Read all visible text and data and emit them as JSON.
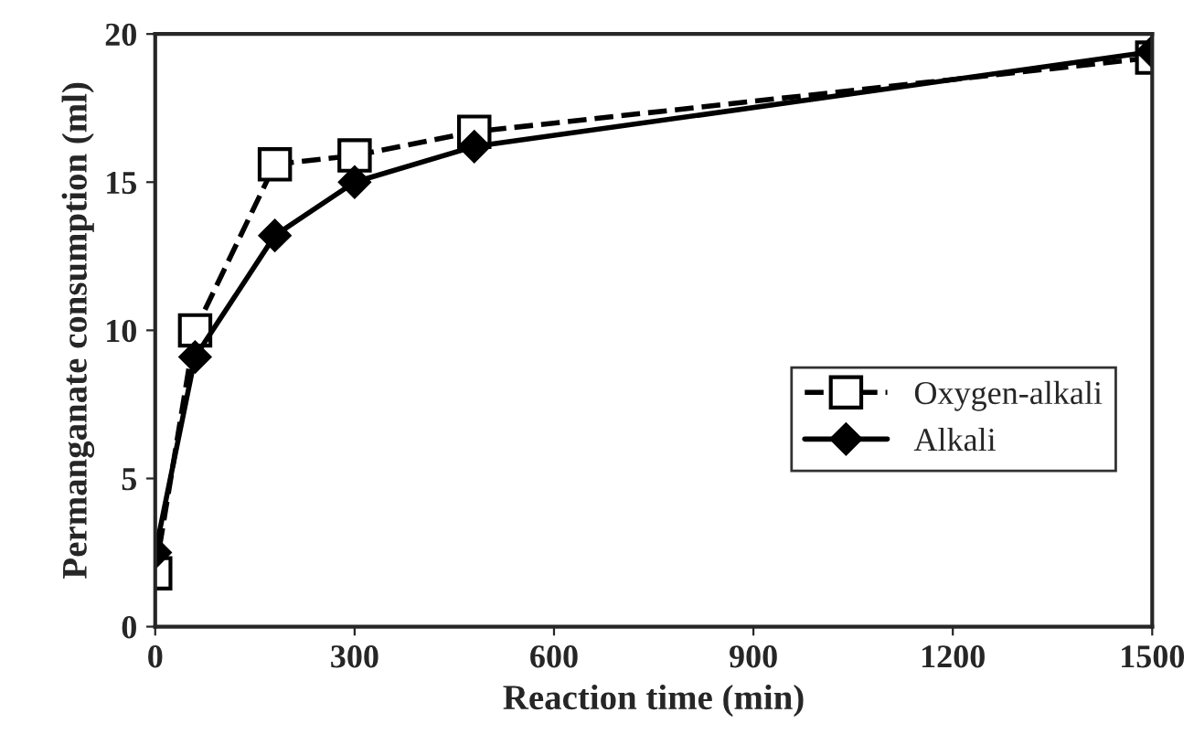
{
  "chart_data": {
    "type": "line",
    "xlabel": "Reaction time (min)",
    "ylabel": "Permanganate consumption (ml)",
    "xlim": [
      0,
      1500
    ],
    "xticks": [
      0,
      300,
      600,
      900,
      1200,
      1500
    ],
    "ylim": [
      0,
      20
    ],
    "yticks": [
      0,
      5,
      10,
      15,
      20
    ],
    "grid": false,
    "legend": "right",
    "series": [
      {
        "name": "Oxygen-alkali",
        "color": "#000000",
        "marker": "square",
        "line_style": "dashed",
        "x": [
          0,
          60,
          180,
          300,
          480,
          1500
        ],
        "values": [
          1.8,
          10.0,
          15.6,
          15.9,
          16.7,
          19.2
        ]
      },
      {
        "name": "Alkali",
        "color": "#000000",
        "marker": "diamond",
        "line_style": "solid",
        "x": [
          0,
          60,
          180,
          300,
          480,
          1500
        ],
        "values": [
          2.5,
          9.1,
          13.2,
          15.0,
          16.2,
          19.4
        ]
      }
    ]
  }
}
